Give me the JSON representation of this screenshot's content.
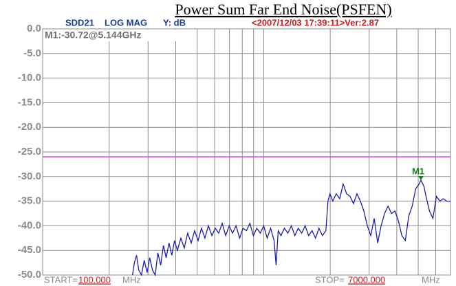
{
  "chart_data": {
    "type": "line",
    "title": "Power Sum Far End Noise(PSFEN)",
    "header": {
      "parameter": "SDD21",
      "format": "LOG MAG",
      "y_unit": "Y: dB",
      "timestamp": "<2007/12/03 17:39:11>Ver:2.87"
    },
    "start": {
      "label": "START=",
      "value": "100.000",
      "unit": "MHz"
    },
    "stop": {
      "label": "STOP=",
      "value": "7000.000",
      "unit": "MHz"
    },
    "xscale": "log",
    "xlim": [
      100,
      7000
    ],
    "xticks": [
      200,
      300,
      400,
      500,
      600,
      700,
      800,
      900,
      1000,
      2000,
      3000,
      4000,
      5000,
      6000
    ],
    "ylim": [
      -50,
      0
    ],
    "yticks": [
      {
        "value": 0,
        "label": "0.0"
      },
      {
        "value": -5,
        "label": "-5.0"
      },
      {
        "value": -10,
        "label": "-10.0"
      },
      {
        "value": -15,
        "label": "-15.0"
      },
      {
        "value": -20,
        "label": "-20.0"
      },
      {
        "value": -25,
        "label": "-25.0"
      },
      {
        "value": -30,
        "label": "-30.0"
      },
      {
        "value": -35,
        "label": "-35.0"
      },
      {
        "value": -40,
        "label": "-40.0"
      },
      {
        "value": -45,
        "label": "-45.0"
      },
      {
        "value": -50,
        "label": "-50.0"
      }
    ],
    "grid": true,
    "x": [
      255,
      260,
      266,
      272,
      280,
      288,
      297,
      305,
      314,
      323,
      332,
      342,
      352,
      362,
      373,
      384,
      395,
      407,
      422,
      437,
      453,
      470,
      487,
      505,
      523,
      542,
      562,
      583,
      604,
      626,
      649,
      673,
      698,
      723,
      750,
      778,
      806,
      836,
      866,
      898,
      931,
      965,
      1000,
      1037,
      1075,
      1114,
      1138,
      1163,
      1197,
      1241,
      1286,
      1334,
      1383,
      1433,
      1486,
      1540,
      1597,
      1655,
      1716,
      1778,
      1844,
      1911,
      1953,
      1995,
      2054,
      2129,
      2207,
      2288,
      2371,
      2458,
      2548,
      2642,
      2738,
      2839,
      2943,
      3051,
      3162,
      3278,
      3398,
      3523,
      3652,
      3786,
      3925,
      4068,
      4217,
      4372,
      4532,
      4698,
      4870,
      5049,
      5144,
      5308,
      5423,
      5623,
      5829,
      6043,
      6265,
      6494,
      6732,
      7000
    ],
    "series": [
      {
        "color": "#1c1ca8",
        "values": [
          -50,
          -47.5,
          -46,
          -49,
          -50,
          -47,
          -49.5,
          -46.5,
          -49,
          -50,
          -45.5,
          -48,
          -44,
          -46.5,
          -43.5,
          -46,
          -43,
          -45,
          -42.5,
          -44.5,
          -41.5,
          -43.5,
          -41,
          -43,
          -40.5,
          -42.5,
          -40,
          -42,
          -40.5,
          -41.5,
          -39.5,
          -42,
          -40,
          -41.5,
          -40,
          -42.5,
          -40.5,
          -41,
          -39.5,
          -42,
          -40.5,
          -41.5,
          -40,
          -42.5,
          -40.5,
          -43,
          -48,
          -41,
          -42,
          -40.5,
          -41.5,
          -40,
          -42,
          -40.5,
          -41.5,
          -40,
          -42,
          -41,
          -42.5,
          -40.5,
          -42,
          -41,
          -35,
          -33.5,
          -35,
          -33.5,
          -34.5,
          -31.5,
          -33.5,
          -34,
          -35.5,
          -33.5,
          -35,
          -37,
          -40,
          -42,
          -38.5,
          -43.5,
          -40,
          -37.5,
          -36,
          -37.5,
          -37,
          -39,
          -42,
          -43,
          -38,
          -36,
          -32.5,
          -31.5,
          -30.72,
          -32,
          -34,
          -37,
          -38.5,
          -34,
          -35,
          -34.5,
          -35,
          -35
        ]
      }
    ],
    "limit_line": {
      "value": -26,
      "color": "#e040e0"
    },
    "marker": {
      "label": "M1",
      "x": 5144,
      "y": -30.72,
      "readout": "M1:-30.72@5.144GHz",
      "color": "#1a7a1a"
    }
  }
}
